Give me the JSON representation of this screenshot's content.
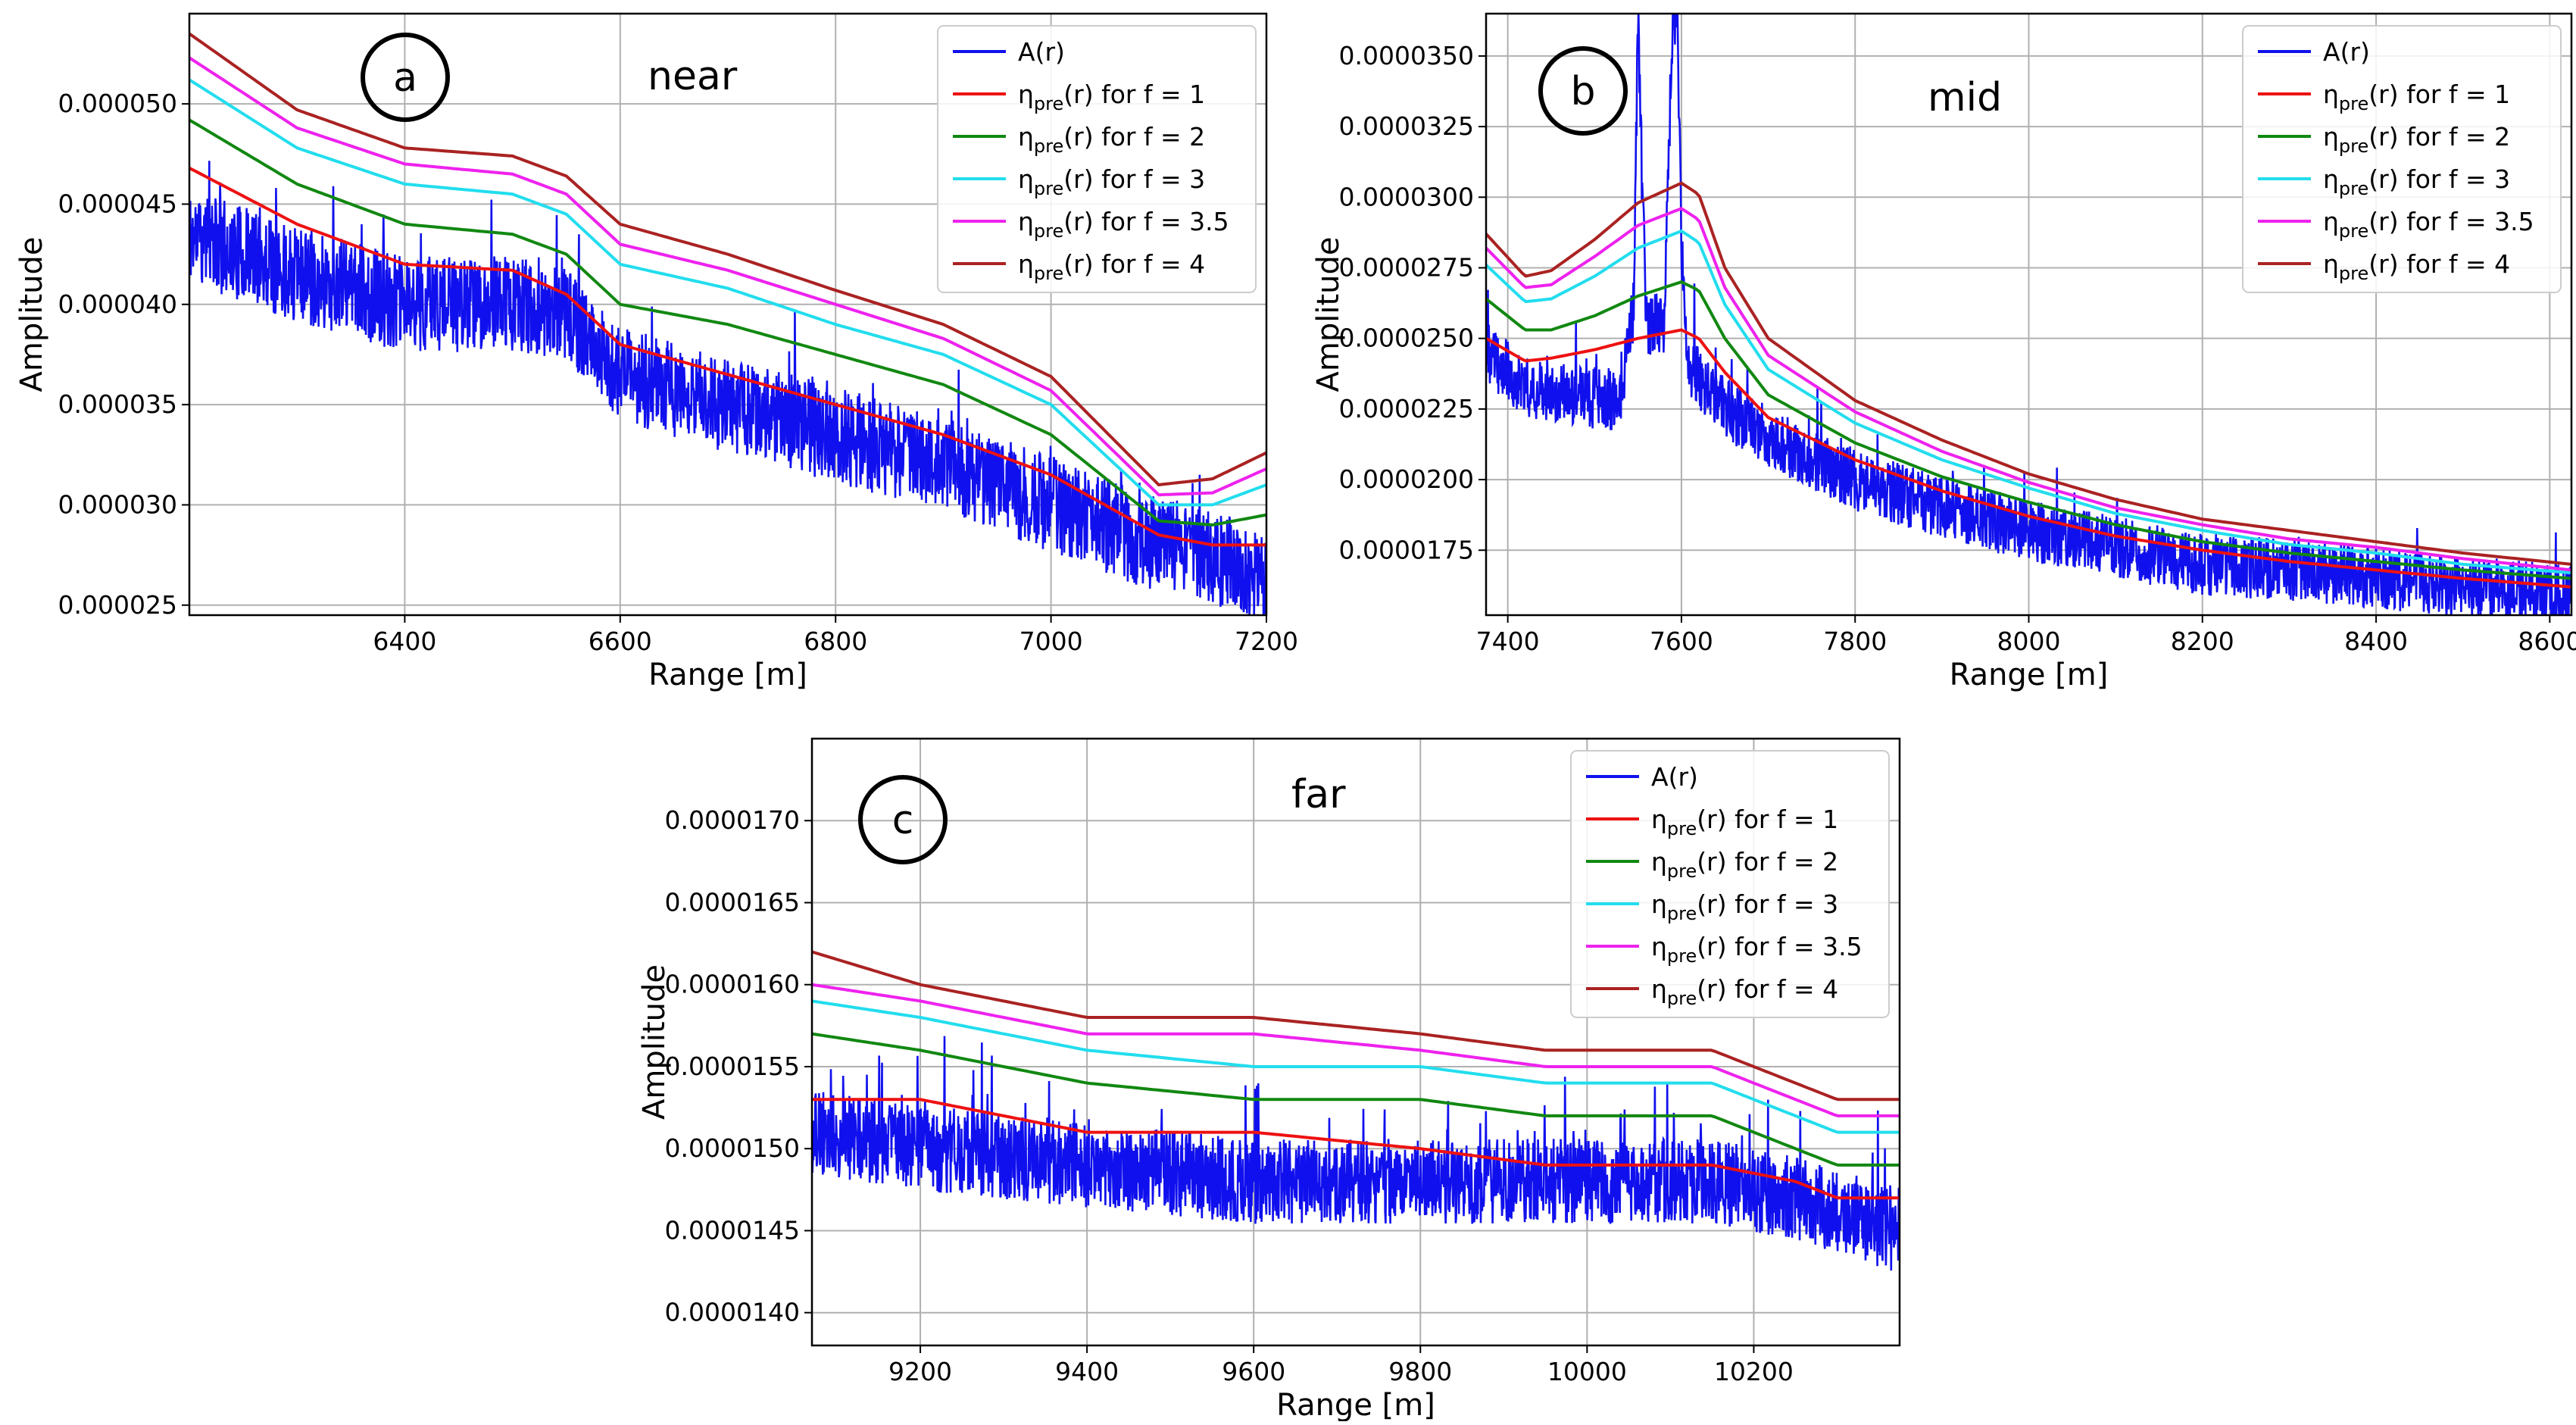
{
  "chart_data": [
    {
      "id": "a",
      "type": "line",
      "panel_label": "a",
      "annotation": "near",
      "xlabel": "Range [m]",
      "ylabel": "Amplitude",
      "xlim": [
        6200,
        7200
      ],
      "ylim": [
        2.45e-05,
        5.45e-05
      ],
      "xticks": [
        6400,
        6600,
        6800,
        7000,
        7200
      ],
      "xtick_labels": [
        "6400",
        "6600",
        "6800",
        "7000",
        "7200"
      ],
      "yticks": [
        2.5e-05,
        3e-05,
        3.5e-05,
        4e-05,
        4.5e-05,
        5e-05
      ],
      "ytick_labels": [
        "0.000025",
        "0.000030",
        "0.000035",
        "0.000040",
        "0.000045",
        "0.000050"
      ],
      "grid": true,
      "legend_position": "top-right",
      "noise": {
        "seed": 11,
        "amp": 2.4e-06,
        "spike_amp": 4.5e-06,
        "spike_prob": 0.03
      },
      "signal": {
        "name": "A(r)",
        "color": "#1010ee",
        "x": [
          6200,
          6300,
          6400,
          6500,
          6550,
          6600,
          6700,
          6800,
          6900,
          7000,
          7100,
          7150,
          7200
        ],
        "y": [
          4.35e-05,
          4.15e-05,
          4e-05,
          4e-05,
          3.95e-05,
          3.65e-05,
          3.5e-05,
          3.35e-05,
          3.2e-05,
          3e-05,
          2.8e-05,
          2.75e-05,
          2.6e-05
        ]
      },
      "series": [
        {
          "name": "η",
          "sub": "pre",
          "suffix": "(r) for f = 1",
          "color": "#ee1111",
          "x": [
            6200,
            6300,
            6400,
            6500,
            6550,
            6600,
            6700,
            6800,
            6900,
            7000,
            7100,
            7150,
            7200
          ],
          "y": [
            4.68e-05,
            4.4e-05,
            4.2e-05,
            4.17e-05,
            4.05e-05,
            3.8e-05,
            3.65e-05,
            3.5e-05,
            3.35e-05,
            3.15e-05,
            2.85e-05,
            2.8e-05,
            2.8e-05
          ]
        },
        {
          "name": "η",
          "sub": "pre",
          "suffix": "(r) for f = 2",
          "color": "#118811",
          "x": [
            6200,
            6300,
            6400,
            6500,
            6550,
            6600,
            6700,
            6800,
            6900,
            7000,
            7100,
            7150,
            7200
          ],
          "y": [
            4.92e-05,
            4.6e-05,
            4.4e-05,
            4.35e-05,
            4.25e-05,
            4e-05,
            3.9e-05,
            3.75e-05,
            3.6e-05,
            3.35e-05,
            2.92e-05,
            2.9e-05,
            2.95e-05
          ]
        },
        {
          "name": "η",
          "sub": "pre",
          "suffix": "(r) for f = 3",
          "color": "#22ddee",
          "x": [
            6200,
            6300,
            6400,
            6500,
            6550,
            6600,
            6700,
            6800,
            6900,
            7000,
            7100,
            7150,
            7200
          ],
          "y": [
            5.12e-05,
            4.78e-05,
            4.6e-05,
            4.55e-05,
            4.45e-05,
            4.2e-05,
            4.08e-05,
            3.9e-05,
            3.75e-05,
            3.5e-05,
            3e-05,
            3e-05,
            3.1e-05
          ]
        },
        {
          "name": "η",
          "sub": "pre",
          "suffix": "(r) for f = 3.5",
          "color": "#ee22ee",
          "x": [
            6200,
            6300,
            6400,
            6500,
            6550,
            6600,
            6700,
            6800,
            6900,
            7000,
            7100,
            7150,
            7200
          ],
          "y": [
            5.23e-05,
            4.88e-05,
            4.7e-05,
            4.65e-05,
            4.55e-05,
            4.3e-05,
            4.17e-05,
            4e-05,
            3.83e-05,
            3.57e-05,
            3.05e-05,
            3.06e-05,
            3.18e-05
          ]
        },
        {
          "name": "η",
          "sub": "pre",
          "suffix": "(r) for f = 4",
          "color": "#aa2222",
          "x": [
            6200,
            6300,
            6400,
            6500,
            6550,
            6600,
            6700,
            6800,
            6900,
            7000,
            7100,
            7150,
            7200
          ],
          "y": [
            5.35e-05,
            4.97e-05,
            4.78e-05,
            4.74e-05,
            4.64e-05,
            4.4e-05,
            4.25e-05,
            4.07e-05,
            3.9e-05,
            3.64e-05,
            3.1e-05,
            3.13e-05,
            3.26e-05
          ]
        }
      ]
    },
    {
      "id": "b",
      "type": "line",
      "panel_label": "b",
      "annotation": "mid",
      "xlabel": "Range [m]",
      "ylabel": "Amplitude",
      "xlim": [
        7375,
        8625
      ],
      "ylim": [
        1.52e-05,
        3.65e-05
      ],
      "xticks": [
        7400,
        7600,
        7800,
        8000,
        8200,
        8400,
        8600
      ],
      "xtick_labels": [
        "7400",
        "7600",
        "7800",
        "8000",
        "8200",
        "8400",
        "8600"
      ],
      "yticks": [
        1.75e-05,
        2e-05,
        2.25e-05,
        2.5e-05,
        2.75e-05,
        3e-05,
        3.25e-05,
        3.5e-05
      ],
      "ytick_labels": [
        "0.0000175",
        "0.0000200",
        "0.0000225",
        "0.0000250",
        "0.0000275",
        "0.0000300",
        "0.0000325",
        "0.0000350"
      ],
      "grid": true,
      "legend_position": "top-right",
      "noise": {
        "seed": 23,
        "amp": 1.1e-06,
        "spike_amp": 2.2e-06,
        "spike_prob": 0.02
      },
      "signal": {
        "name": "A(r)",
        "color": "#1010ee",
        "x": [
          7375,
          7420,
          7470,
          7530,
          7545,
          7550,
          7555,
          7560,
          7580,
          7590,
          7595,
          7600,
          7605,
          7610,
          7650,
          7700,
          7800,
          7900,
          8000,
          8100,
          8200,
          8300,
          8400,
          8500,
          8625
        ],
        "y": [
          2.45e-05,
          2.33e-05,
          2.3e-05,
          2.28e-05,
          2.6e-05,
          3.65e-05,
          3e-05,
          2.55e-05,
          2.55e-05,
          3.65e-05,
          3.65e-05,
          2.85e-05,
          2.5e-05,
          2.4e-05,
          2.25e-05,
          2.15e-05,
          2e-05,
          1.9e-05,
          1.82e-05,
          1.76e-05,
          1.7e-05,
          1.68e-05,
          1.65e-05,
          1.62e-05,
          1.59e-05
        ]
      },
      "series": [
        {
          "name": "η",
          "sub": "pre",
          "suffix": "(r) for f = 1",
          "color": "#ee1111",
          "x": [
            7375,
            7420,
            7450,
            7500,
            7550,
            7600,
            7620,
            7650,
            7700,
            7800,
            7900,
            8000,
            8100,
            8200,
            8300,
            8400,
            8500,
            8625
          ],
          "y": [
            2.5e-05,
            2.42e-05,
            2.43e-05,
            2.46e-05,
            2.5e-05,
            2.53e-05,
            2.5e-05,
            2.38e-05,
            2.22e-05,
            2.07e-05,
            1.96e-05,
            1.87e-05,
            1.8e-05,
            1.75e-05,
            1.71e-05,
            1.68e-05,
            1.65e-05,
            1.62e-05
          ]
        },
        {
          "name": "η",
          "sub": "pre",
          "suffix": "(r) for f = 2",
          "color": "#118811",
          "x": [
            7375,
            7420,
            7450,
            7500,
            7550,
            7600,
            7620,
            7650,
            7700,
            7800,
            7900,
            8000,
            8100,
            8200,
            8300,
            8400,
            8500,
            8625
          ],
          "y": [
            2.64e-05,
            2.53e-05,
            2.53e-05,
            2.58e-05,
            2.65e-05,
            2.7e-05,
            2.67e-05,
            2.5e-05,
            2.3e-05,
            2.13e-05,
            2.01e-05,
            1.92e-05,
            1.84e-05,
            1.78e-05,
            1.74e-05,
            1.71e-05,
            1.68e-05,
            1.65e-05
          ]
        },
        {
          "name": "η",
          "sub": "pre",
          "suffix": "(r) for f = 3",
          "color": "#22ddee",
          "x": [
            7375,
            7420,
            7450,
            7500,
            7550,
            7600,
            7620,
            7650,
            7700,
            7800,
            7900,
            8000,
            8100,
            8200,
            8300,
            8400,
            8500,
            8625
          ],
          "y": [
            2.76e-05,
            2.63e-05,
            2.64e-05,
            2.72e-05,
            2.82e-05,
            2.88e-05,
            2.84e-05,
            2.62e-05,
            2.39e-05,
            2.2e-05,
            2.07e-05,
            1.97e-05,
            1.88e-05,
            1.82e-05,
            1.77e-05,
            1.74e-05,
            1.7e-05,
            1.67e-05
          ]
        },
        {
          "name": "η",
          "sub": "pre",
          "suffix": "(r) for f = 3.5",
          "color": "#ee22ee",
          "x": [
            7375,
            7420,
            7450,
            7500,
            7550,
            7600,
            7620,
            7650,
            7700,
            7800,
            7900,
            8000,
            8100,
            8200,
            8300,
            8400,
            8500,
            8625
          ],
          "y": [
            2.82e-05,
            2.68e-05,
            2.69e-05,
            2.79e-05,
            2.9e-05,
            2.96e-05,
            2.92e-05,
            2.68e-05,
            2.44e-05,
            2.24e-05,
            2.1e-05,
            1.99e-05,
            1.9e-05,
            1.84e-05,
            1.79e-05,
            1.76e-05,
            1.72e-05,
            1.68e-05
          ]
        },
        {
          "name": "η",
          "sub": "pre",
          "suffix": "(r) for f = 4",
          "color": "#aa2222",
          "x": [
            7375,
            7420,
            7450,
            7500,
            7550,
            7600,
            7620,
            7650,
            7700,
            7800,
            7900,
            8000,
            8100,
            8200,
            8300,
            8400,
            8500,
            8625
          ],
          "y": [
            2.87e-05,
            2.72e-05,
            2.74e-05,
            2.85e-05,
            2.98e-05,
            3.05e-05,
            3.01e-05,
            2.75e-05,
            2.5e-05,
            2.28e-05,
            2.14e-05,
            2.02e-05,
            1.93e-05,
            1.86e-05,
            1.82e-05,
            1.78e-05,
            1.74e-05,
            1.7e-05
          ]
        }
      ]
    },
    {
      "id": "c",
      "type": "line",
      "panel_label": "c",
      "annotation": "far",
      "xlabel": "Range [m]",
      "ylabel": "Amplitude",
      "xlim": [
        9070,
        10375
      ],
      "ylim": [
        1.38e-05,
        1.75e-05
      ],
      "xticks": [
        9200,
        9400,
        9600,
        9800,
        10000,
        10200
      ],
      "xtick_labels": [
        "9200",
        "9400",
        "9600",
        "9800",
        "10000",
        "10200"
      ],
      "yticks": [
        1.4e-05,
        1.45e-05,
        1.5e-05,
        1.55e-05,
        1.6e-05,
        1.65e-05,
        1.7e-05
      ],
      "ytick_labels": [
        "0.0000140",
        "0.0000145",
        "0.0000150",
        "0.0000155",
        "0.0000160",
        "0.0000165",
        "0.0000170"
      ],
      "grid": true,
      "legend_position": "top-right",
      "noise": {
        "seed": 37,
        "amp": 2.6e-07,
        "spike_amp": 5e-07,
        "spike_prob": 0.04
      },
      "signal": {
        "name": "A(r)",
        "color": "#1010ee",
        "x": [
          9070,
          9200,
          9400,
          9600,
          9800,
          10000,
          10150,
          10250,
          10375
        ],
        "y": [
          1.51e-05,
          1.5e-05,
          1.49e-05,
          1.48e-05,
          1.48e-05,
          1.48e-05,
          1.48e-05,
          1.47e-05,
          1.45e-05
        ]
      },
      "series": [
        {
          "name": "η",
          "sub": "pre",
          "suffix": "(r) for f = 1",
          "color": "#ee1111",
          "x": [
            9070,
            9200,
            9300,
            9400,
            9600,
            9800,
            9950,
            10000,
            10150,
            10250,
            10300,
            10375
          ],
          "y": [
            1.53e-05,
            1.53e-05,
            1.52e-05,
            1.51e-05,
            1.51e-05,
            1.5e-05,
            1.49e-05,
            1.49e-05,
            1.49e-05,
            1.48e-05,
            1.47e-05,
            1.47e-05
          ]
        },
        {
          "name": "η",
          "sub": "pre",
          "suffix": "(r) for f = 2",
          "color": "#118811",
          "x": [
            9070,
            9200,
            9300,
            9400,
            9600,
            9800,
            9950,
            10000,
            10150,
            10250,
            10300,
            10375
          ],
          "y": [
            1.57e-05,
            1.56e-05,
            1.55e-05,
            1.54e-05,
            1.53e-05,
            1.53e-05,
            1.52e-05,
            1.52e-05,
            1.52e-05,
            1.5e-05,
            1.49e-05,
            1.49e-05
          ]
        },
        {
          "name": "η",
          "sub": "pre",
          "suffix": "(r) for f = 3",
          "color": "#22ddee",
          "x": [
            9070,
            9200,
            9300,
            9400,
            9600,
            9800,
            9950,
            10000,
            10150,
            10250,
            10300,
            10375
          ],
          "y": [
            1.59e-05,
            1.58e-05,
            1.57e-05,
            1.56e-05,
            1.55e-05,
            1.55e-05,
            1.54e-05,
            1.54e-05,
            1.54e-05,
            1.52e-05,
            1.51e-05,
            1.51e-05
          ]
        },
        {
          "name": "η",
          "sub": "pre",
          "suffix": "(r) for f = 3.5",
          "color": "#ee22ee",
          "x": [
            9070,
            9200,
            9300,
            9400,
            9600,
            9800,
            9950,
            10000,
            10150,
            10250,
            10300,
            10375
          ],
          "y": [
            1.6e-05,
            1.59e-05,
            1.58e-05,
            1.57e-05,
            1.57e-05,
            1.56e-05,
            1.55e-05,
            1.55e-05,
            1.55e-05,
            1.53e-05,
            1.52e-05,
            1.52e-05
          ]
        },
        {
          "name": "η",
          "sub": "pre",
          "suffix": "(r) for f = 4",
          "color": "#aa2222",
          "x": [
            9070,
            9200,
            9300,
            9400,
            9600,
            9800,
            9950,
            10000,
            10150,
            10250,
            10300,
            10375
          ],
          "y": [
            1.62e-05,
            1.6e-05,
            1.59e-05,
            1.58e-05,
            1.58e-05,
            1.57e-05,
            1.56e-05,
            1.56e-05,
            1.56e-05,
            1.54e-05,
            1.53e-05,
            1.53e-05
          ]
        }
      ]
    }
  ]
}
